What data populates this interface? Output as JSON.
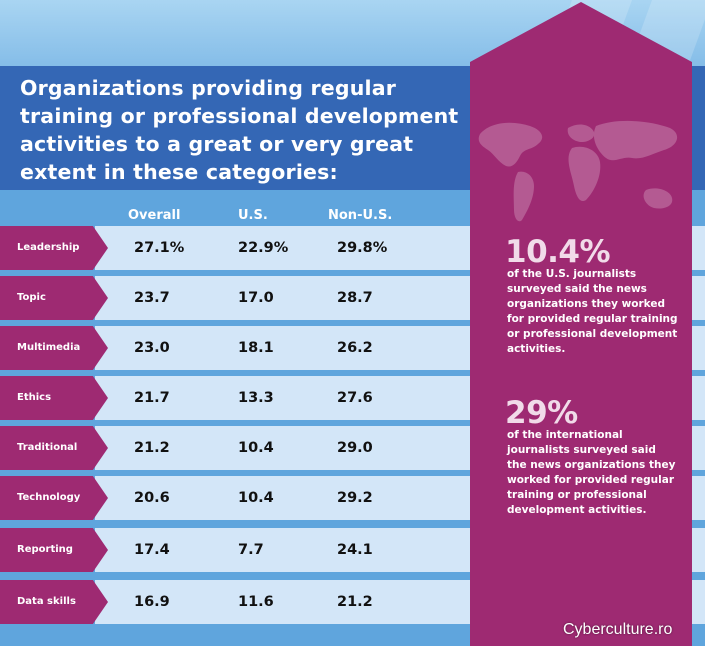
{
  "title": "Organizations providing regular training or professional development activities to a great or very great extent in these categories:",
  "columns": [
    "Overall",
    "U.S.",
    "Non-U.S."
  ],
  "rows": [
    {
      "label": "Leadership",
      "overall": "27.1%",
      "us": "22.9%",
      "nonus": "29.8%"
    },
    {
      "label": "Topic",
      "overall": "23.7",
      "us": "17.0",
      "nonus": "28.7"
    },
    {
      "label": "Multimedia",
      "overall": "23.0",
      "us": "18.1",
      "nonus": "26.2"
    },
    {
      "label": "Ethics",
      "overall": "21.7",
      "us": "13.3",
      "nonus": "27.6"
    },
    {
      "label": "Traditional",
      "overall": "21.2",
      "us": "10.4",
      "nonus": "29.0"
    },
    {
      "label": "Technology",
      "overall": "20.6",
      "us": "10.4",
      "nonus": "29.2"
    },
    {
      "label": "Reporting",
      "overall": "17.4",
      "us": "7.7",
      "nonus": "24.1"
    },
    {
      "label": "Data skills",
      "overall": "16.9",
      "us": "11.6",
      "nonus": "21.2"
    }
  ],
  "stats": [
    {
      "value": "10.4%",
      "text": "of the U.S. journalists surveyed said the news organizations they worked for provided regular training or professional development activities."
    },
    {
      "value": "29%",
      "text": "of the international journalists surveyed said the news organizations they worked for provided regular training or professional development activities."
    }
  ],
  "credit": "Cyberculture.ro",
  "colors": {
    "purple": "#9e2a72",
    "blue": "#3467b5",
    "row": "#d3e6f8"
  }
}
